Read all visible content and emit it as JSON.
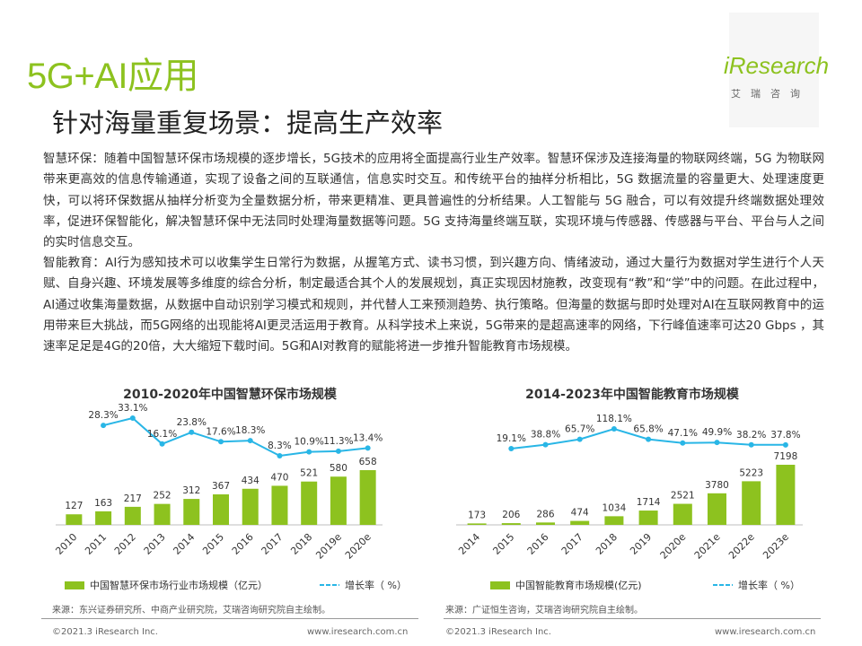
{
  "header": {
    "title": "5G+AI应用",
    "subtitle": "针对海量重复场景：提高生产效率",
    "logo_text": "iResearch",
    "logo_cn": "艾瑞咨询"
  },
  "paragraphs": {
    "p1": "智慧环保：随着中国智慧环保市场规模的逐步增长，5G技术的应用将全面提高行业生产效率。智慧环保涉及连接海量的物联网终端，5G 为物联网带来更高效的信息传输通道，实现了设备之间的互联通信，信息实时交互。和传统平台的抽样分析相比，5G 数据流量的容量更大、处理速度更快，可以将环保数据从抽样分析变为全量数据分析，带来更精准、更具普遍性的分析结果。人工智能与 5G 融合，可以有效提升终端数据处理效率，促进环保智能化，解决智慧环保中无法同时处理海量数据等问题。5G 支持海量终端互联，实现环境与传感器、传感器与平台、平台与人之间的实时信息交互。",
    "p2": "智能教育：AI行为感知技术可以收集学生日常行为数据，从握笔方式、读书习惯，到兴趣方向、情绪波动，通过大量行为数据对学生进行个人天赋、自身兴趣、环境发展等多维度的综合分析，制定最适合其个人的发展规划，真正实现因材施教，改变现有“教”和“学”中的问题。在此过程中，AI通过收集海量数据，从数据中自动识别学习模式和规则，并代替人工来预测趋势、执行策略。但海量的数据与即时处理对AI在互联网教育中的运用带来巨大挑战，而5G网络的出现能将AI更灵活运用于教育。从科学技术上来说，5G带来的是超高速率的网络，下行峰值速率可达20 Gbps ，其速率足足是4G的20倍，大大缩短下载时间。5G和AI对教育的赋能将进一步推升智能教育市场规模。"
  },
  "chart_data": [
    {
      "type": "bar",
      "title": "2010-2020年中国智慧环保市场规模",
      "categories": [
        "2010",
        "2011",
        "2012",
        "2013",
        "2014",
        "2015",
        "2016",
        "2017",
        "2018",
        "2019e",
        "2020e"
      ],
      "series": [
        {
          "name": "中国智慧环保市场行业市场规模（亿元）",
          "type": "bar",
          "values": [
            127,
            163,
            217,
            252,
            312,
            367,
            434,
            470,
            521,
            580,
            658
          ]
        },
        {
          "name": "增长率（ %）",
          "type": "line",
          "values": [
            null,
            28.3,
            33.1,
            16.1,
            23.8,
            17.6,
            18.3,
            8.3,
            10.9,
            11.3,
            13.4
          ],
          "labels": [
            "",
            "28.3%",
            "33.1%",
            "16.1%",
            "23.8%",
            "17.6%",
            "18.3%",
            "8.3%",
            "10.9%",
            "11.3%",
            "13.4%"
          ]
        }
      ],
      "colors": {
        "bar": "#8dc21f",
        "line": "#29b6e6"
      }
    },
    {
      "type": "bar",
      "title": "2014-2023年中国智能教育市场规模",
      "categories": [
        "2014",
        "2015",
        "2016",
        "2017",
        "2018",
        "2019",
        "2020e",
        "2021e",
        "2022e",
        "2023e"
      ],
      "series": [
        {
          "name": "中国智能教育市场规模(亿元)",
          "type": "bar",
          "values": [
            173,
            206,
            286,
            474,
            1034,
            1714,
            2521,
            3780,
            5223,
            7198
          ]
        },
        {
          "name": "增长率（ %）",
          "type": "line",
          "values": [
            null,
            19.1,
            38.8,
            65.7,
            118.1,
            65.8,
            47.1,
            49.9,
            38.2,
            37.8
          ],
          "labels": [
            "",
            "19.1%",
            "38.8%",
            "65.7%",
            "118.1%",
            "65.8%",
            "47.1%",
            "49.9%",
            "38.2%",
            "37.8%"
          ]
        }
      ],
      "colors": {
        "bar": "#8dc21f",
        "line": "#29b6e6"
      }
    }
  ],
  "sources": {
    "left": "来源：东兴证券研究所、中商产业研究院，艾瑞咨询研究院自主绘制。",
    "right": "来源：广证恒生咨询，艾瑞咨询研究院自主绘制。"
  },
  "footer": {
    "left_copyright": "©2021.3 iResearch Inc.",
    "left_url": "www.iresearch.com.cn",
    "right_copyright": "©2021.3 iResearch Inc.",
    "right_url": "www.iresearch.com.cn"
  }
}
